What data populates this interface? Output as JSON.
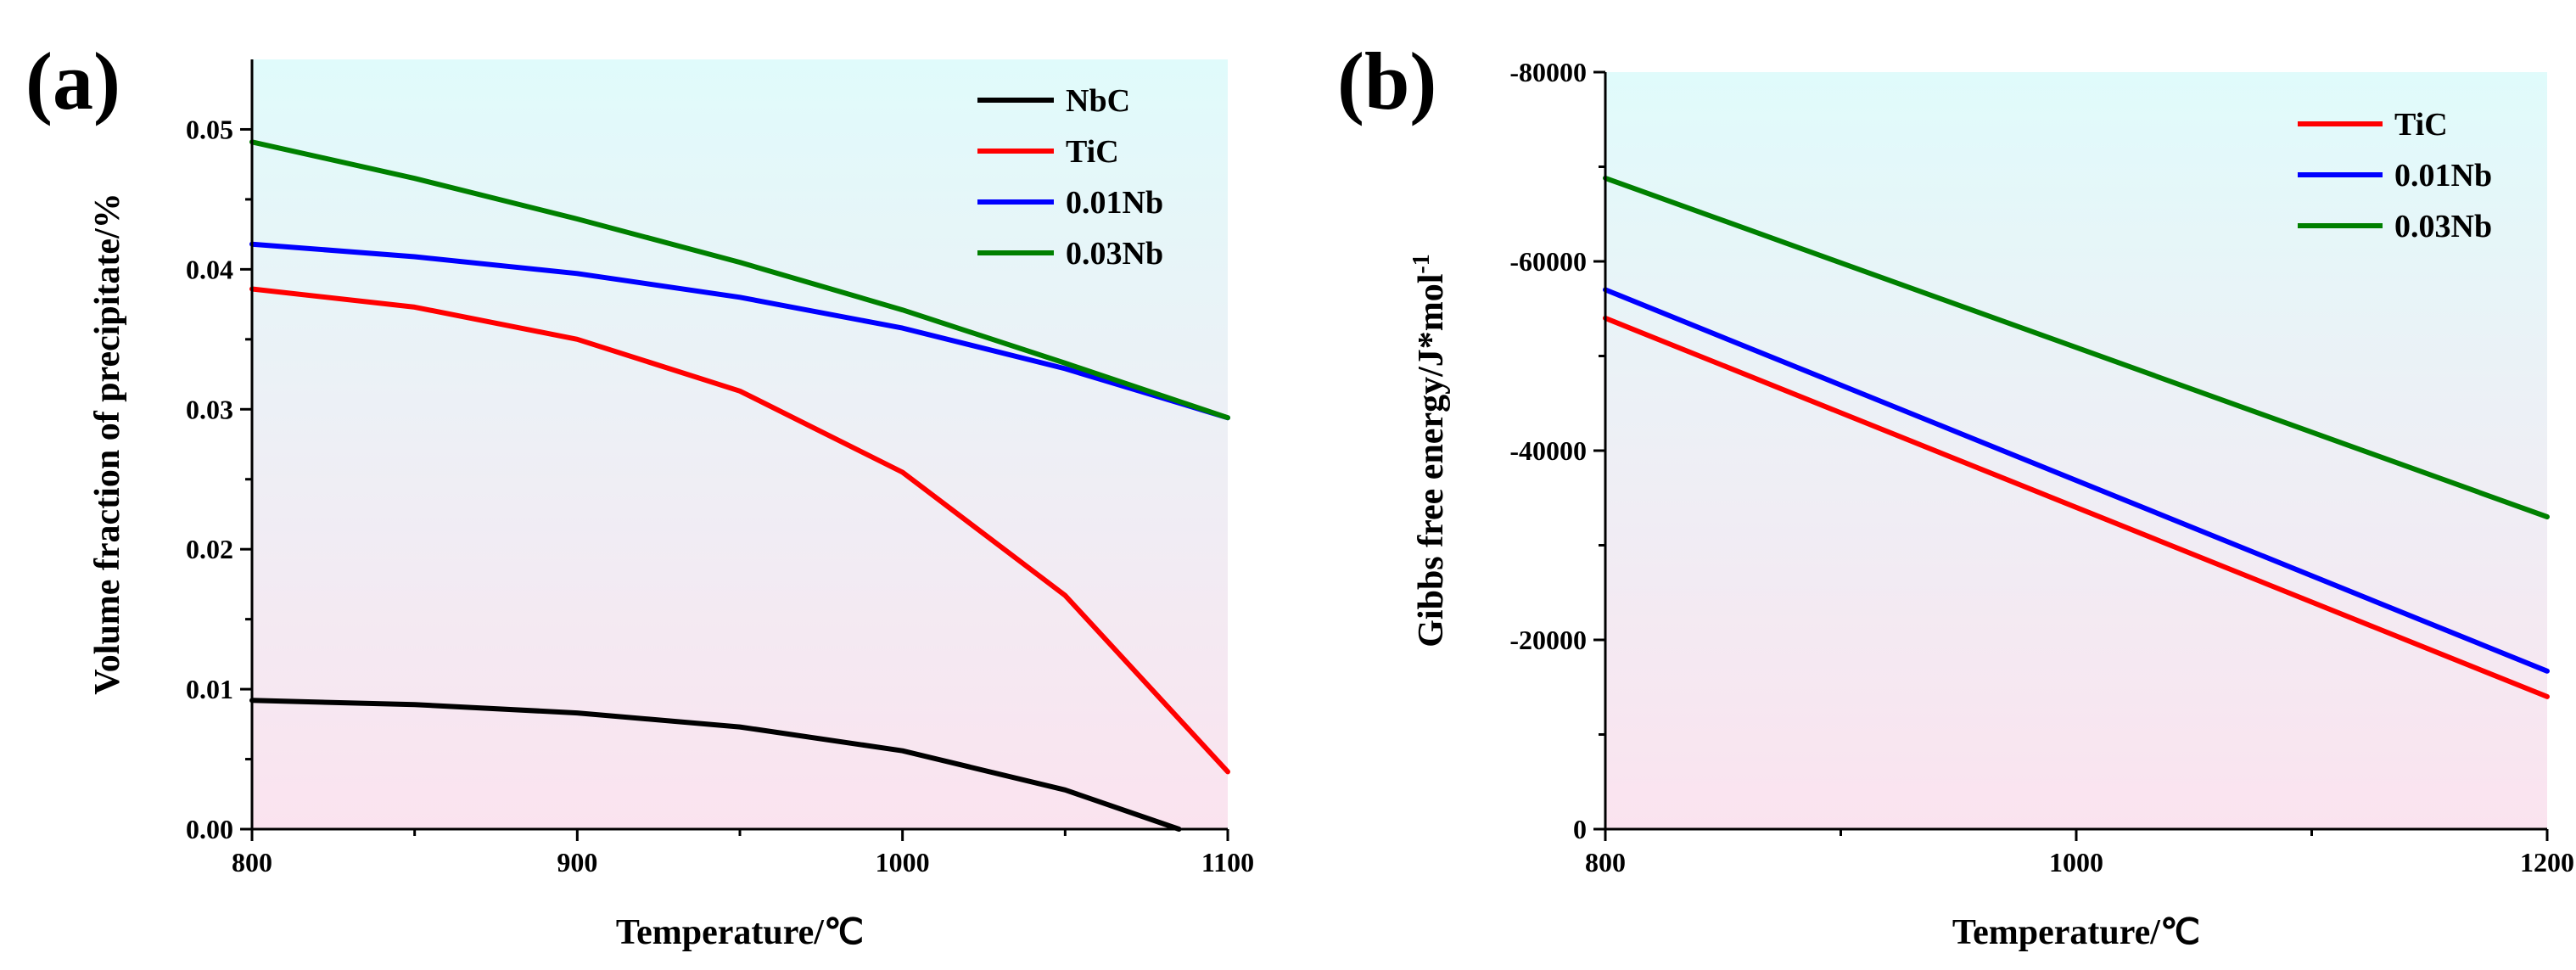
{
  "panels": [
    {
      "label": "(a)"
    },
    {
      "label": "(b)"
    }
  ],
  "chart_data": [
    {
      "type": "line",
      "title": "",
      "xlabel": "Temperature/℃",
      "ylabel": "Volume fraction of precipitate/%",
      "xlim": [
        800,
        1100
      ],
      "ylim": [
        0,
        0.055
      ],
      "xticks": [
        "800",
        "900",
        "1000",
        "1100"
      ],
      "yticks": [
        "0.00",
        "0.01",
        "0.02",
        "0.03",
        "0.04",
        "0.05"
      ],
      "background_gradient": [
        "#e0fbfb",
        "#fbe3ef"
      ],
      "legend_position": "top-right",
      "series": [
        {
          "name": "NbC",
          "color": "#000000",
          "x": [
            800,
            850,
            900,
            950,
            1000,
            1050,
            1085
          ],
          "values": [
            0.0092,
            0.0089,
            0.0083,
            0.0073,
            0.0056,
            0.0028,
            0.0
          ]
        },
        {
          "name": "TiC",
          "color": "#ff0000",
          "x": [
            800,
            850,
            900,
            950,
            1000,
            1050,
            1100
          ],
          "values": [
            0.0386,
            0.0373,
            0.035,
            0.0313,
            0.0255,
            0.0167,
            0.0041
          ]
        },
        {
          "name": "0.01Nb",
          "color": "#0000ff",
          "x": [
            800,
            850,
            900,
            950,
            1000,
            1050,
            1100
          ],
          "values": [
            0.0418,
            0.0409,
            0.0397,
            0.038,
            0.0358,
            0.0329,
            0.0294
          ]
        },
        {
          "name": "0.03Nb",
          "color": "#008000",
          "x": [
            800,
            850,
            900,
            950,
            1000,
            1050,
            1100
          ],
          "values": [
            0.0491,
            0.0465,
            0.0436,
            0.0405,
            0.0371,
            0.0333,
            0.0294
          ]
        }
      ]
    },
    {
      "type": "line",
      "title": "",
      "xlabel": "Temperature/℃",
      "ylabel": "Gibbs free energy/J*mol",
      "ylabel_superscript": "-1",
      "xlim": [
        800,
        1200
      ],
      "ylim": [
        0,
        -80000
      ],
      "xticks": [
        "800",
        "1000",
        "1200"
      ],
      "yticks": [
        "0",
        "-20000",
        "-40000",
        "-60000",
        "-80000"
      ],
      "background_gradient": [
        "#e0fbfb",
        "#fbe3ef"
      ],
      "legend_position": "top-right",
      "series": [
        {
          "name": "TiC",
          "color": "#ff0000",
          "x": [
            800,
            1200
          ],
          "values": [
            -54000,
            -14000
          ]
        },
        {
          "name": "0.01Nb",
          "color": "#0000ff",
          "x": [
            800,
            1200
          ],
          "values": [
            -57000,
            -16700
          ]
        },
        {
          "name": "0.03Nb",
          "color": "#008000",
          "x": [
            800,
            1200
          ],
          "values": [
            -68800,
            -33000
          ]
        }
      ]
    }
  ]
}
